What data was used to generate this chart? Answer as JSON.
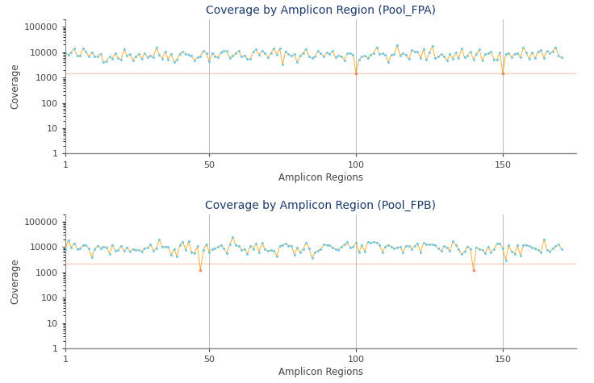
{
  "title_fpa": "Coverage by Amplicon Region (Pool_FPA)",
  "title_fpb": "Coverage by Amplicon Region (Pool_FPB)",
  "xlabel": "Amplicon Regions",
  "ylabel": "Coverage",
  "title_color": "#1a3a6b",
  "title_fontsize": 10,
  "label_fontsize": 8.5,
  "background_color": "#ffffff",
  "ylim_log": [
    1,
    200000
  ],
  "xlim": [
    1,
    175
  ],
  "xticks": [
    1,
    50,
    100,
    150
  ],
  "yticks": [
    1,
    10,
    100,
    1000,
    10000,
    100000
  ],
  "ytick_labels": [
    "1",
    "10",
    "100",
    "1000",
    "10000",
    "100000"
  ],
  "vlines": [
    50,
    100,
    150
  ],
  "vline_color": "#c0c0c0",
  "threshold_fpa": 1500,
  "threshold_fpb": 2200,
  "threshold_color": "#f0a080",
  "threshold_alpha": 0.5,
  "line_color": "#f5a623",
  "dot_color": "#5bc8f0",
  "low_dot_color": "#f08060",
  "n_amplicons": 170,
  "seed_fpa": 42,
  "seed_fpb": 99,
  "base_coverage_fpa": 8000,
  "base_coverage_fpb": 9000,
  "figsize": [
    7.36,
    4.75
  ],
  "dpi": 100
}
